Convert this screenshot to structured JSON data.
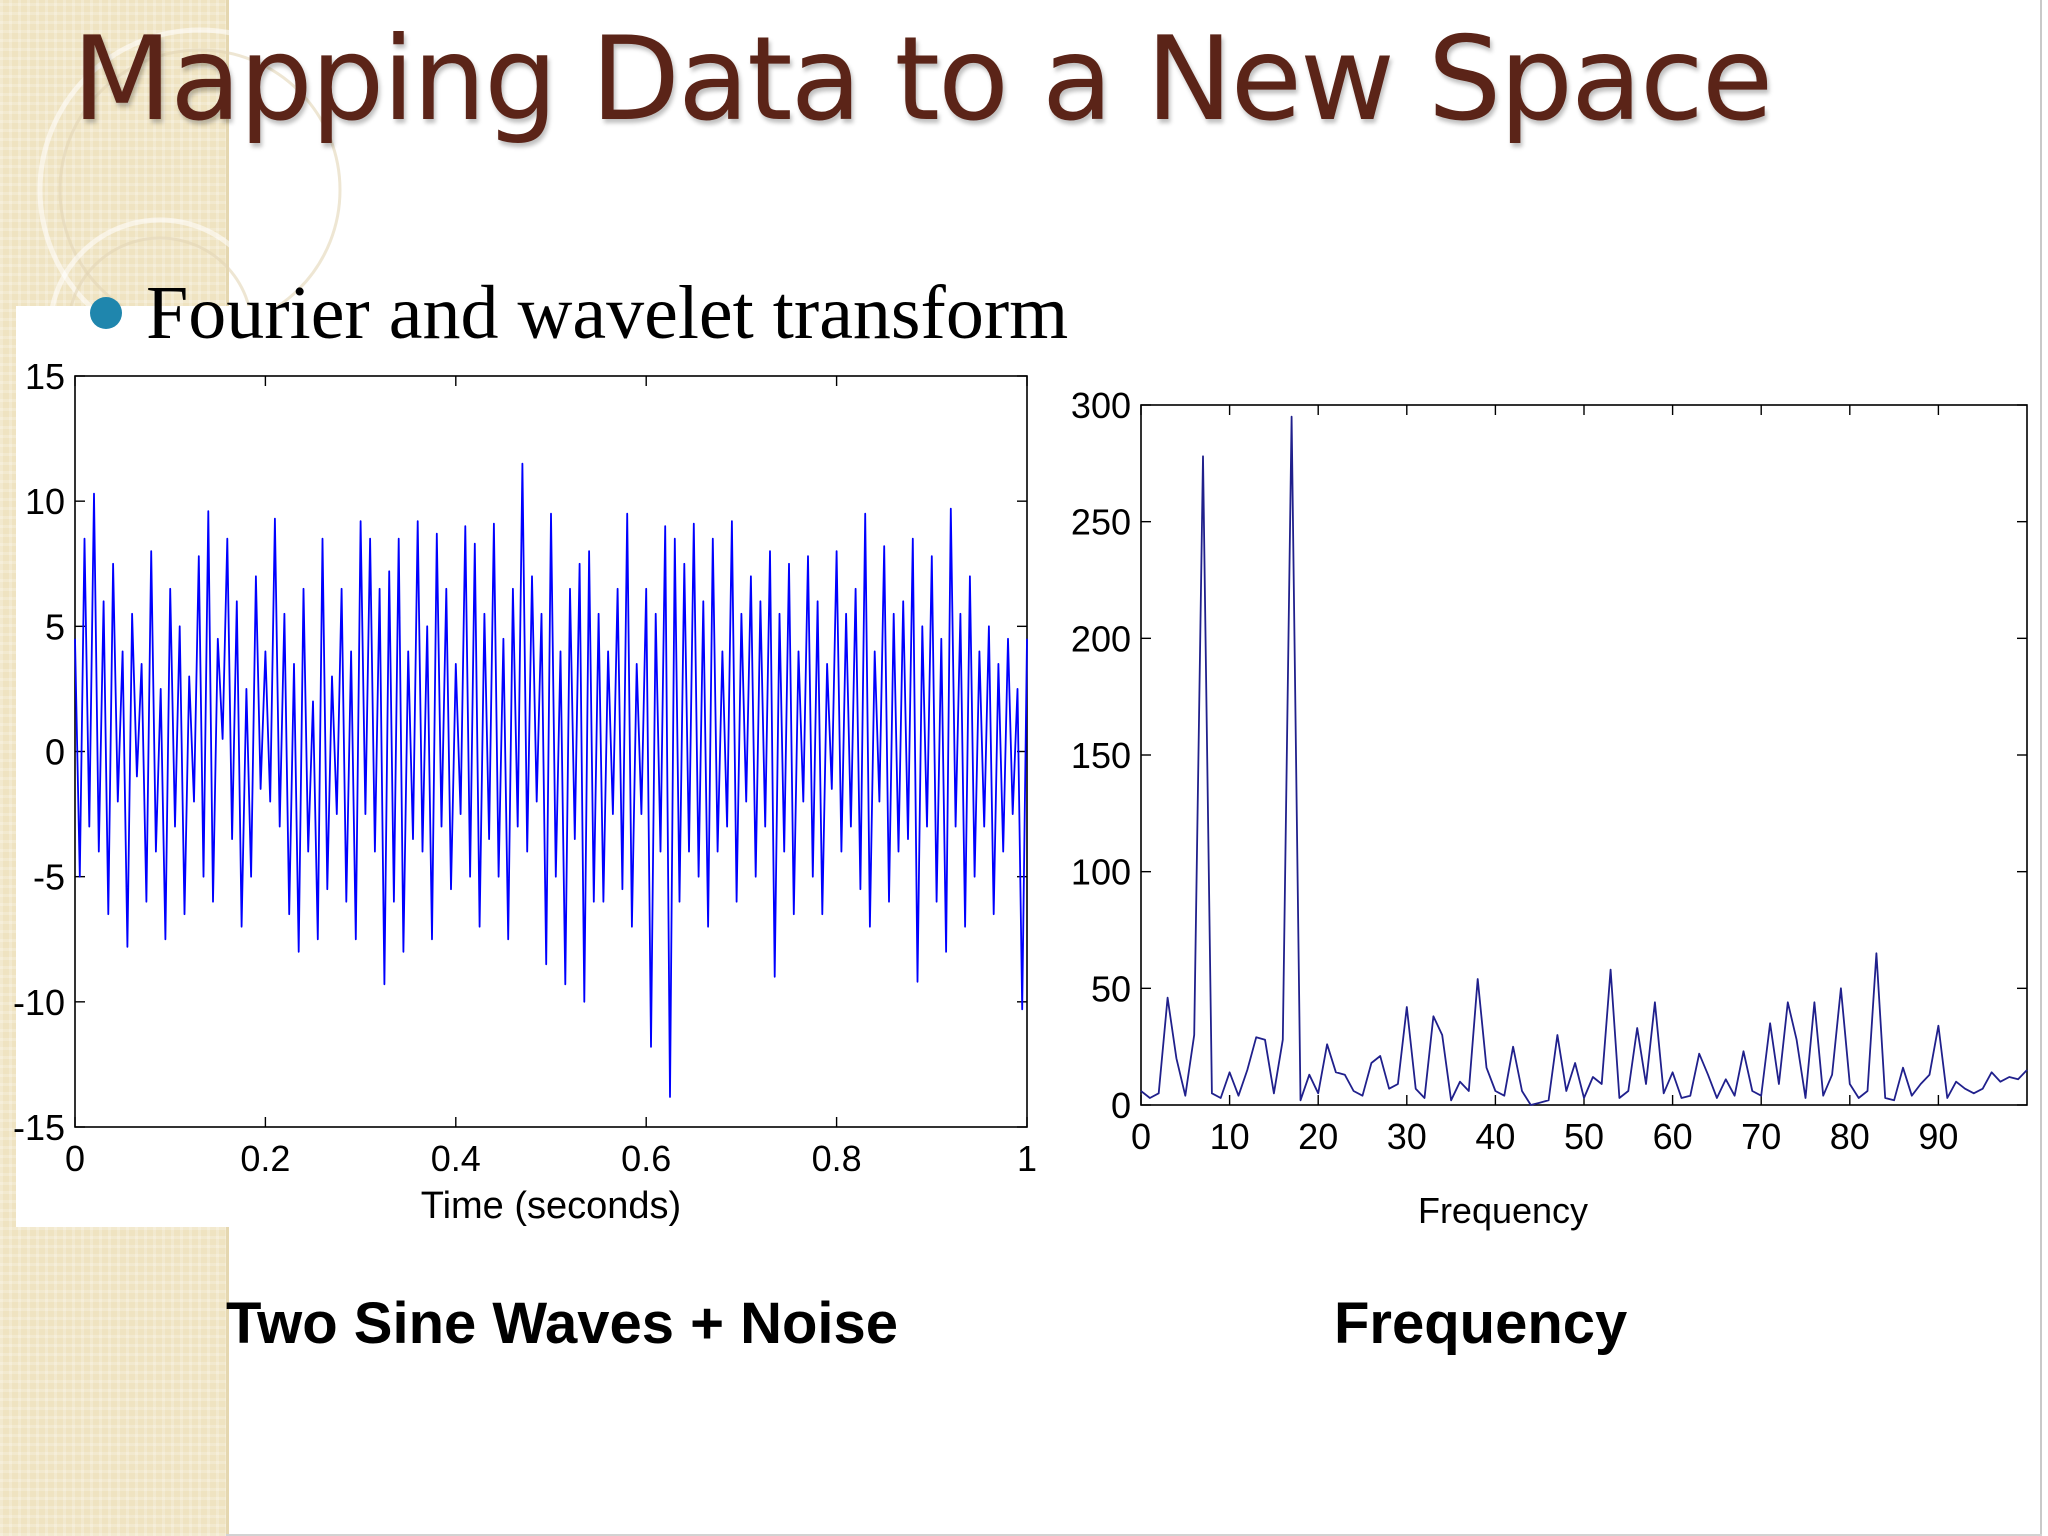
{
  "slide": {
    "title": "Mapping Data to a New Space",
    "bullet": "Fourier and wavelet transform",
    "caption_left": "Two Sine Waves + Noise",
    "caption_right": "Frequency",
    "colors": {
      "title": "#5b2418",
      "bullet": "#1f86ad",
      "band": "#efe3c1",
      "series": "#0000ff",
      "series_spectrum": "#20208c"
    }
  },
  "chart_data": [
    {
      "type": "line",
      "xlabel": "Time (seconds)",
      "ylabel": "",
      "xlim": [
        0,
        1
      ],
      "ylim": [
        -15,
        15
      ],
      "x_ticks": [
        0,
        0.2,
        0.4,
        0.6,
        0.8,
        1
      ],
      "y_ticks": [
        -15,
        -10,
        -5,
        0,
        5,
        10,
        15
      ],
      "x_tick_labels": [
        "0",
        "0.2",
        "0.4",
        "0.6",
        "0.8",
        "1"
      ],
      "y_tick_labels": [
        "-15",
        "-10",
        "-5",
        "0",
        "5",
        "10",
        "15"
      ],
      "grid": false,
      "series": [
        {
          "color": "#0000ff",
          "x": [
            0,
            0.005,
            0.01,
            0.015,
            0.02,
            0.025,
            0.03,
            0.035,
            0.04,
            0.045,
            0.05,
            0.055,
            0.06,
            0.065,
            0.07,
            0.075,
            0.08,
            0.085,
            0.09,
            0.095,
            0.1,
            0.105,
            0.11,
            0.115,
            0.12,
            0.125,
            0.13,
            0.135,
            0.14,
            0.145,
            0.15,
            0.155,
            0.16,
            0.165,
            0.17,
            0.175,
            0.18,
            0.185,
            0.19,
            0.195,
            0.2,
            0.205,
            0.21,
            0.215,
            0.22,
            0.225,
            0.23,
            0.235,
            0.24,
            0.245,
            0.25,
            0.255,
            0.26,
            0.265,
            0.27,
            0.275,
            0.28,
            0.285,
            0.29,
            0.295,
            0.3,
            0.305,
            0.31,
            0.315,
            0.32,
            0.325,
            0.33,
            0.335,
            0.34,
            0.345,
            0.35,
            0.355,
            0.36,
            0.365,
            0.37,
            0.375,
            0.38,
            0.385,
            0.39,
            0.395,
            0.4,
            0.405,
            0.41,
            0.415,
            0.42,
            0.425,
            0.43,
            0.435,
            0.44,
            0.445,
            0.45,
            0.455,
            0.46,
            0.465,
            0.47,
            0.475,
            0.48,
            0.485,
            0.49,
            0.495,
            0.5,
            0.505,
            0.51,
            0.515,
            0.52,
            0.525,
            0.53,
            0.535,
            0.54,
            0.545,
            0.55,
            0.555,
            0.56,
            0.565,
            0.57,
            0.575,
            0.58,
            0.585,
            0.59,
            0.595,
            0.6,
            0.605,
            0.61,
            0.615,
            0.62,
            0.625,
            0.63,
            0.635,
            0.64,
            0.645,
            0.65,
            0.655,
            0.66,
            0.665,
            0.67,
            0.675,
            0.68,
            0.685,
            0.69,
            0.695,
            0.7,
            0.705,
            0.71,
            0.715,
            0.72,
            0.725,
            0.73,
            0.735,
            0.74,
            0.745,
            0.75,
            0.755,
            0.76,
            0.765,
            0.77,
            0.775,
            0.78,
            0.785,
            0.79,
            0.795,
            0.8,
            0.805,
            0.81,
            0.815,
            0.82,
            0.825,
            0.83,
            0.835,
            0.84,
            0.845,
            0.85,
            0.855,
            0.86,
            0.865,
            0.87,
            0.875,
            0.88,
            0.885,
            0.89,
            0.895,
            0.9,
            0.905,
            0.91,
            0.915,
            0.92,
            0.925,
            0.93,
            0.935,
            0.94,
            0.945,
            0.95,
            0.955,
            0.96,
            0.965,
            0.97,
            0.975,
            0.98,
            0.985,
            0.99,
            0.995,
            1
          ],
          "y": [
            4.5,
            -5,
            8.5,
            -3,
            10.3,
            -4,
            6,
            -6.5,
            7.5,
            -2,
            4,
            -7.8,
            5.5,
            -1,
            3.5,
            -6,
            8,
            -4,
            2.5,
            -7.5,
            6.5,
            -3,
            5,
            -6.5,
            3,
            -2,
            7.8,
            -5,
            9.6,
            -6,
            4.5,
            0.5,
            8.5,
            -3.5,
            6,
            -7,
            2.5,
            -5,
            7,
            -1.5,
            4,
            -2,
            9.3,
            -3,
            5.5,
            -6.5,
            3.5,
            -8,
            6.5,
            -4,
            2,
            -7.5,
            8.5,
            -5.5,
            3,
            -2.5,
            6.5,
            -6,
            4,
            -7.5,
            9.2,
            -2.5,
            8.5,
            -4,
            6.5,
            -9.3,
            7.2,
            -6,
            8.5,
            -8,
            4,
            -3.5,
            9.2,
            -4,
            5,
            -7.5,
            8.7,
            -3,
            6.5,
            -5.5,
            3.5,
            -2.5,
            9,
            -5,
            8.3,
            -7,
            5.5,
            -3.5,
            9.1,
            -5,
            4.5,
            -7.5,
            6.5,
            -3,
            11.5,
            -4,
            7,
            -2,
            5.5,
            -8.5,
            9.5,
            -5,
            4,
            -9.3,
            6.5,
            -3.5,
            7.5,
            -10,
            8,
            -6,
            5.5,
            -6,
            4,
            -2.5,
            6.5,
            -5.5,
            9.5,
            -7,
            3.5,
            -2.5,
            6.5,
            -11.8,
            5.5,
            -4,
            9,
            -13.8,
            8.5,
            -6,
            7.5,
            -4,
            9.1,
            -5,
            6,
            -7,
            8.5,
            -4,
            4,
            -3,
            9.2,
            -6,
            5.5,
            -2,
            7,
            -5,
            6,
            -3,
            8,
            -9,
            5.5,
            -4,
            7.5,
            -6.5,
            4,
            -2,
            7.8,
            -5,
            6,
            -6.5,
            3.5,
            -1.5,
            8,
            -4,
            5.5,
            -3,
            6.5,
            -5.5,
            9.5,
            -7,
            4,
            -2,
            8.2,
            -6,
            5.5,
            -4,
            6,
            -3.5,
            8.5,
            -9.2,
            5,
            -3,
            7.8,
            -6,
            4.5,
            -8,
            9.7,
            -3,
            5.5,
            -7,
            7,
            -5,
            4,
            -3,
            5,
            -6.5,
            3.5,
            -4,
            4.5,
            -2.5,
            2.5,
            -10.3,
            4.5
          ]
        }
      ]
    },
    {
      "type": "line",
      "xlabel": "Frequency",
      "ylabel": "",
      "xlim": [
        0,
        100
      ],
      "ylim": [
        0,
        300
      ],
      "x_ticks": [
        0,
        10,
        20,
        30,
        40,
        50,
        60,
        70,
        80,
        90
      ],
      "y_ticks": [
        0,
        50,
        100,
        150,
        200,
        250,
        300
      ],
      "x_tick_labels": [
        "0",
        "10",
        "20",
        "30",
        "40",
        "50",
        "60",
        "70",
        "80",
        "90"
      ],
      "y_tick_labels": [
        "0",
        "50",
        "100",
        "150",
        "200",
        "250",
        "300"
      ],
      "grid": false,
      "series": [
        {
          "color": "#20208c",
          "x": [
            0,
            1,
            2,
            3,
            4,
            5,
            6,
            7,
            8,
            9,
            10,
            11,
            12,
            13,
            14,
            15,
            16,
            17,
            18,
            19,
            20,
            21,
            22,
            23,
            24,
            25,
            26,
            27,
            28,
            29,
            30,
            31,
            32,
            33,
            34,
            35,
            36,
            37,
            38,
            39,
            40,
            41,
            42,
            43,
            44,
            45,
            46,
            47,
            48,
            49,
            50,
            51,
            52,
            53,
            54,
            55,
            56,
            57,
            58,
            59,
            60,
            61,
            62,
            63,
            64,
            65,
            66,
            67,
            68,
            69,
            70,
            71,
            72,
            73,
            74,
            75,
            76,
            77,
            78,
            79,
            80,
            81,
            82,
            83,
            84,
            85,
            86,
            87,
            88,
            89,
            90,
            91,
            92,
            93,
            94,
            95,
            96,
            97,
            98,
            99,
            100
          ],
          "y": [
            6,
            3,
            5,
            46,
            20,
            4,
            30,
            278,
            5,
            3,
            14,
            4,
            15,
            29,
            28,
            5,
            28,
            295,
            2,
            13,
            5,
            26,
            14,
            13,
            6,
            4,
            18,
            21,
            7,
            9,
            42,
            7,
            3,
            38,
            30,
            2,
            10,
            6,
            54,
            16,
            6,
            4,
            25,
            6,
            0,
            1,
            2,
            30,
            6,
            18,
            3,
            12,
            9,
            58,
            3,
            6,
            33,
            9,
            44,
            5,
            14,
            3,
            4,
            22,
            13,
            3,
            11,
            4,
            23,
            6,
            4,
            35,
            9,
            44,
            28,
            3,
            44,
            4,
            13,
            50,
            9,
            3,
            6,
            65,
            3,
            2,
            16,
            4,
            9,
            13,
            34,
            3,
            10,
            7,
            5,
            7,
            14,
            10,
            12,
            11,
            15
          ]
        }
      ]
    }
  ]
}
